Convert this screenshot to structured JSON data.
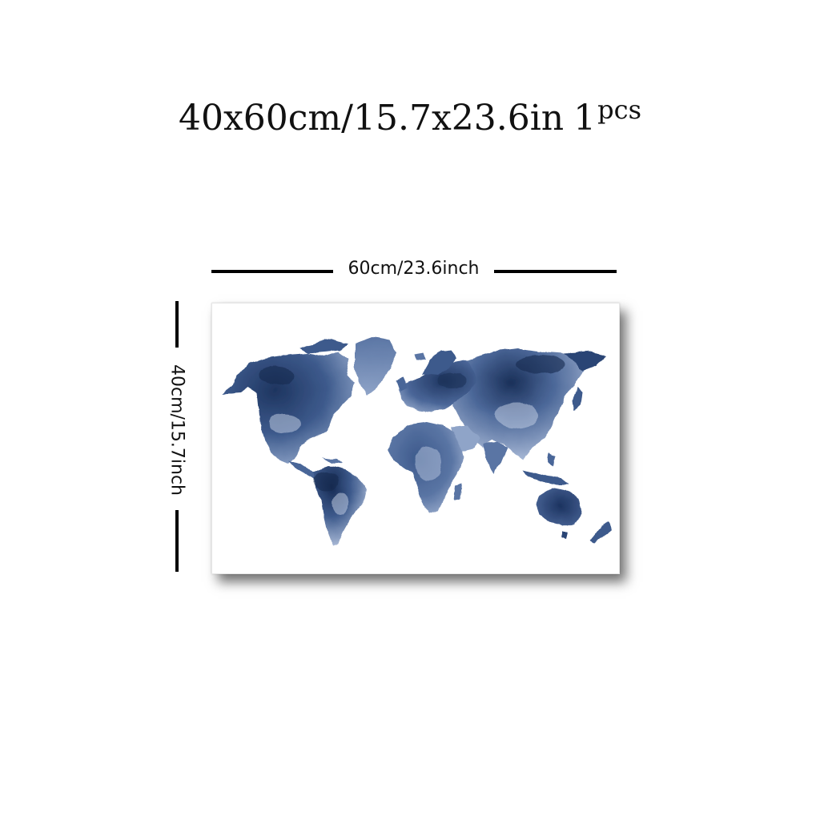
{
  "title": {
    "size_text": "40x60cm/15.7x23.6in",
    "quantity_number": "1",
    "quantity_unit": "pcs"
  },
  "dimensions": {
    "width_label": "60cm/23.6inch",
    "height_label": "40cm/15.7inch"
  },
  "artwork": {
    "subject": "watercolor world map",
    "colors": {
      "deep": "#1e3560",
      "mid": "#3d5a8c",
      "light": "#8fa4c8",
      "background": "#ffffff"
    }
  }
}
